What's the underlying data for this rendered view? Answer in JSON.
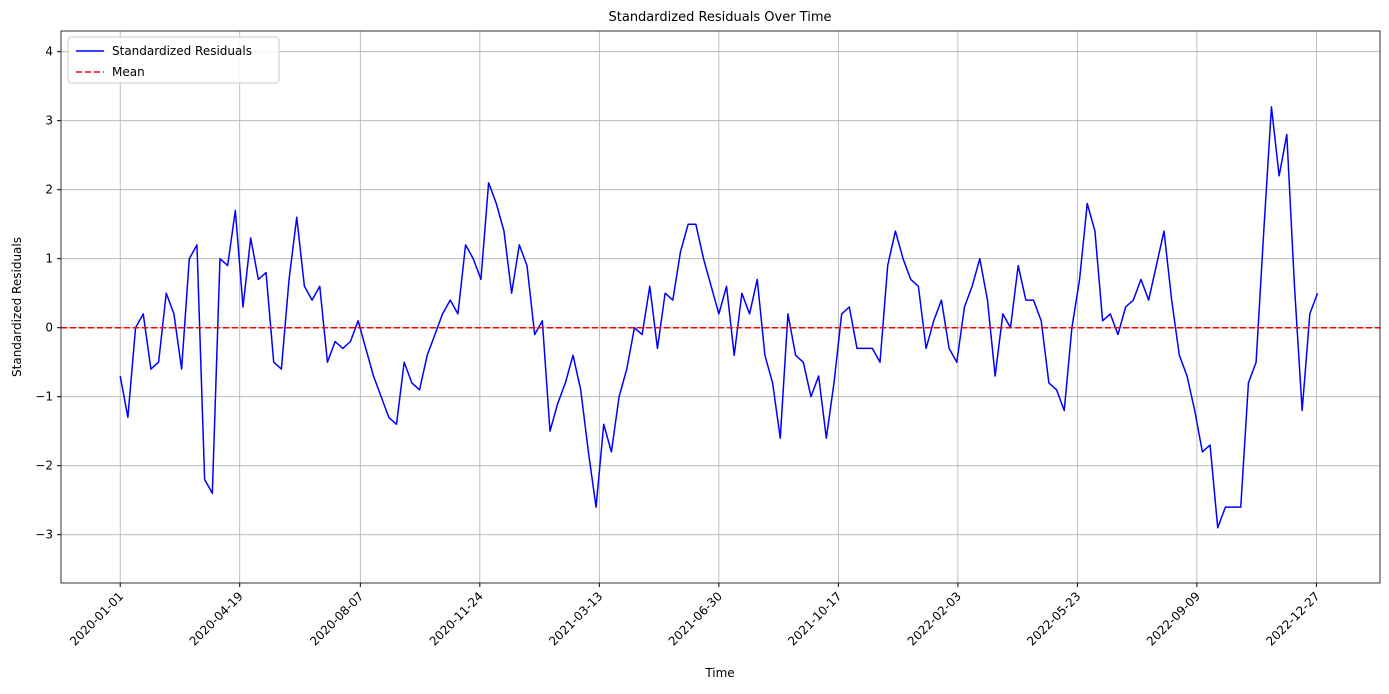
{
  "chart_data": {
    "type": "line",
    "title": "Standardized Residuals Over Time",
    "xlabel": "Time",
    "ylabel": "Standardized Residuals",
    "x": [
      "2020-01-01",
      "2020-01-08",
      "2020-01-15",
      "2020-01-22",
      "2020-01-29",
      "2020-02-05",
      "2020-02-12",
      "2020-02-19",
      "2020-02-26",
      "2020-03-04",
      "2020-03-11",
      "2020-03-18",
      "2020-03-25",
      "2020-04-01",
      "2020-04-08",
      "2020-04-15",
      "2020-04-22",
      "2020-04-29",
      "2020-05-06",
      "2020-05-13",
      "2020-05-20",
      "2020-05-27",
      "2020-06-03",
      "2020-06-10",
      "2020-06-17",
      "2020-06-24",
      "2020-07-01",
      "2020-07-08",
      "2020-07-15",
      "2020-07-22",
      "2020-07-29",
      "2020-08-05",
      "2020-08-12",
      "2020-08-19",
      "2020-08-26",
      "2020-09-02",
      "2020-09-09",
      "2020-09-16",
      "2020-09-23",
      "2020-09-30",
      "2020-10-07",
      "2020-10-14",
      "2020-10-21",
      "2020-10-28",
      "2020-11-04",
      "2020-11-11",
      "2020-11-18",
      "2020-11-25",
      "2020-12-02",
      "2020-12-09",
      "2020-12-16",
      "2020-12-23",
      "2020-12-30",
      "2021-01-06",
      "2021-01-13",
      "2021-01-20",
      "2021-01-27",
      "2021-02-03",
      "2021-02-10",
      "2021-02-17",
      "2021-02-24",
      "2021-03-03",
      "2021-03-10",
      "2021-03-17",
      "2021-03-24",
      "2021-03-31",
      "2021-04-07",
      "2021-04-14",
      "2021-04-21",
      "2021-04-28",
      "2021-05-05",
      "2021-05-12",
      "2021-05-19",
      "2021-05-26",
      "2021-06-02",
      "2021-06-09",
      "2021-06-16",
      "2021-06-23",
      "2021-06-30",
      "2021-07-07",
      "2021-07-14",
      "2021-07-21",
      "2021-07-28",
      "2021-08-04",
      "2021-08-11",
      "2021-08-18",
      "2021-08-25",
      "2021-09-01",
      "2021-09-08",
      "2021-09-15",
      "2021-09-22",
      "2021-09-29",
      "2021-10-06",
      "2021-10-13",
      "2021-10-20",
      "2021-10-27",
      "2021-11-03",
      "2021-11-10",
      "2021-11-17",
      "2021-11-24",
      "2021-12-01",
      "2021-12-08",
      "2021-12-15",
      "2021-12-22",
      "2021-12-29",
      "2022-01-05",
      "2022-01-12",
      "2022-01-19",
      "2022-01-26",
      "2022-02-02",
      "2022-02-09",
      "2022-02-16",
      "2022-02-23",
      "2022-03-02",
      "2022-03-09",
      "2022-03-16",
      "2022-03-23",
      "2022-03-30",
      "2022-04-06",
      "2022-04-13",
      "2022-04-20",
      "2022-04-27",
      "2022-05-04",
      "2022-05-11",
      "2022-05-18",
      "2022-05-25",
      "2022-06-01",
      "2022-06-08",
      "2022-06-15",
      "2022-06-22",
      "2022-06-29",
      "2022-07-06",
      "2022-07-13",
      "2022-07-20",
      "2022-07-27",
      "2022-08-03",
      "2022-08-10",
      "2022-08-17",
      "2022-08-24",
      "2022-08-31",
      "2022-09-07",
      "2022-09-14",
      "2022-09-21",
      "2022-09-28",
      "2022-10-05",
      "2022-10-12",
      "2022-10-19",
      "2022-10-26",
      "2022-11-02",
      "2022-11-09",
      "2022-11-16",
      "2022-11-23",
      "2022-11-30",
      "2022-12-07",
      "2022-12-14",
      "2022-12-21",
      "2022-12-28"
    ],
    "series": [
      {
        "name": "Standardized Residuals",
        "color": "#0000ff",
        "values": [
          -0.7,
          -1.3,
          0.0,
          0.2,
          -0.6,
          -0.5,
          0.5,
          0.2,
          -0.6,
          1.0,
          1.2,
          -2.2,
          -2.4,
          1.0,
          0.9,
          1.7,
          0.3,
          1.3,
          0.7,
          0.8,
          -0.5,
          -0.6,
          0.7,
          1.6,
          0.6,
          0.4,
          0.6,
          -0.5,
          -0.2,
          -0.3,
          -0.2,
          0.1,
          -0.3,
          -0.7,
          -1.0,
          -1.3,
          -1.4,
          -0.5,
          -0.8,
          -0.9,
          -0.4,
          -0.1,
          0.2,
          0.4,
          0.2,
          1.2,
          1.0,
          0.7,
          2.1,
          1.8,
          1.4,
          0.5,
          1.2,
          0.9,
          -0.1,
          0.1,
          -1.5,
          -1.1,
          -0.8,
          -0.4,
          -0.9,
          -1.8,
          -2.6,
          -1.4,
          -1.8,
          -1.0,
          -0.6,
          0.0,
          -0.1,
          0.6,
          -0.3,
          0.5,
          0.4,
          1.1,
          1.5,
          1.5,
          1.0,
          0.6,
          0.2,
          0.6,
          -0.4,
          0.5,
          0.2,
          0.7,
          -0.4,
          -0.8,
          -1.6,
          0.2,
          -0.4,
          -0.5,
          -1.0,
          -0.7,
          -1.6,
          -0.8,
          0.2,
          0.3,
          -0.3,
          -0.3,
          -0.3,
          -0.5,
          0.9,
          1.4,
          1.0,
          0.7,
          0.6,
          -0.3,
          0.1,
          0.4,
          -0.3,
          -0.5,
          0.3,
          0.6,
          1.0,
          0.4,
          -0.7,
          0.2,
          0.0,
          0.9,
          0.4,
          0.4,
          0.1,
          -0.8,
          -0.9,
          -1.2,
          0.0,
          0.7,
          1.8,
          1.4,
          0.1,
          0.2,
          -0.1,
          0.3,
          0.4,
          0.7,
          0.4,
          0.9,
          1.4,
          0.4,
          -0.4,
          -0.7,
          -1.2,
          -1.8,
          -1.7,
          -2.9,
          -2.6,
          -2.6,
          -2.6,
          -0.8,
          -0.5,
          1.4,
          3.2,
          2.2,
          2.8,
          0.6,
          -1.2,
          0.2,
          0.5
        ]
      },
      {
        "name": "Mean",
        "color": "#ff0000",
        "dashed": true,
        "y": 0
      }
    ],
    "xlim": [
      "2019-11-08",
      "2023-02-23"
    ],
    "xticks": [
      "2020-01-01",
      "2020-04-19",
      "2020-08-07",
      "2020-11-24",
      "2021-03-13",
      "2021-06-30",
      "2021-10-17",
      "2022-02-03",
      "2022-05-23",
      "2022-09-09",
      "2022-12-27"
    ],
    "ylim": [
      -3.7,
      4.3
    ],
    "yticks": [
      {
        "value": -3,
        "label": "−3"
      },
      {
        "value": -2,
        "label": "−2"
      },
      {
        "value": -1,
        "label": "−1"
      },
      0,
      1,
      2,
      3,
      4
    ],
    "grid": true,
    "legend": "upper left"
  }
}
